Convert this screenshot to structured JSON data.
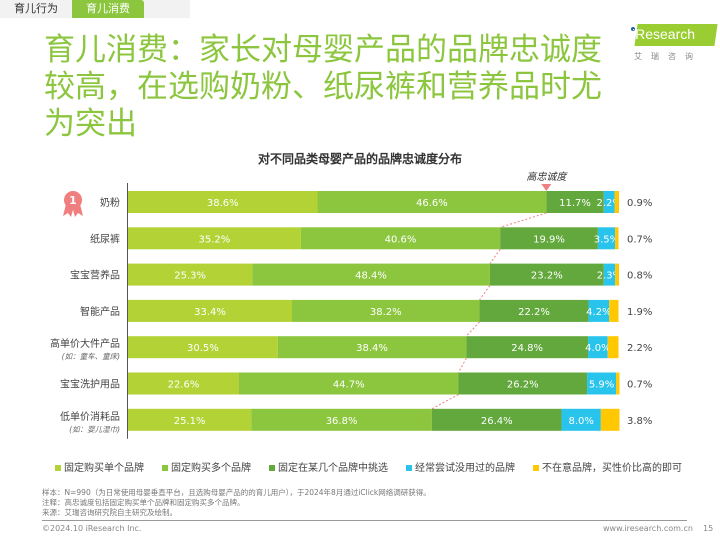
{
  "tabs": [
    {
      "label": "育儿行为",
      "active": false
    },
    {
      "label": "育儿消费",
      "active": true
    }
  ],
  "title": "育儿消费：家长对母婴产品的品牌忠诚度较高，在选购奶粉、纸尿裤和营养品时尤为突出",
  "logo": {
    "text": "iResearch",
    "cn": "艾瑞咨询"
  },
  "colors": {
    "accent": "#8cc63f",
    "segments": [
      "#b3d235",
      "#8cc63f",
      "#62a83c",
      "#29c4ec",
      "#ffc800"
    ],
    "marker": "#f08080"
  },
  "chart_data": {
    "type": "bar",
    "orientation": "horizontal",
    "stacked": true,
    "title": "对不同品类母婴产品的品牌忠诚度分布",
    "annotation": "高忠诚度",
    "rank_badge": {
      "category": "奶粉",
      "rank": "1"
    },
    "categories": [
      {
        "name": "奶粉",
        "note": ""
      },
      {
        "name": "纸尿裤",
        "note": ""
      },
      {
        "name": "宝宝营养品",
        "note": ""
      },
      {
        "name": "智能产品",
        "note": ""
      },
      {
        "name": "高单价大件产品",
        "note": "(如：童车、童床)"
      },
      {
        "name": "宝宝洗护用品",
        "note": ""
      },
      {
        "name": "低单价消耗品",
        "note": "(如：婴儿湿巾)"
      }
    ],
    "series": [
      {
        "name": "固定购买单个品牌",
        "values": [
          38.6,
          35.2,
          25.3,
          33.4,
          30.5,
          22.6,
          25.1
        ]
      },
      {
        "name": "固定购买多个品牌",
        "values": [
          46.6,
          40.6,
          48.4,
          38.2,
          38.4,
          44.7,
          36.8
        ]
      },
      {
        "name": "固定在某几个品牌中挑选",
        "values": [
          11.7,
          19.9,
          23.2,
          22.2,
          24.8,
          26.2,
          26.4
        ]
      },
      {
        "name": "经常尝试没用过的品牌",
        "values": [
          2.2,
          3.5,
          2.3,
          4.2,
          4.0,
          5.9,
          8.0
        ]
      },
      {
        "name": "不在意品牌，买性价比高的即可",
        "values": [
          0.9,
          0.7,
          0.8,
          1.9,
          2.2,
          0.7,
          3.8
        ]
      }
    ],
    "xlim": [
      0,
      100
    ],
    "legend": "bottom",
    "grid": false
  },
  "notes": [
    "样本：N=990（为日常使用母婴垂直平台，且选购母婴产品的的育儿用户），于2024年8月通过iClick网络调研获得。",
    "注释：高忠诚度包括固定购买单个品牌和固定购买多个品牌。",
    "来源：艾瑞咨询研究院自主研究及绘制。"
  ],
  "footer": {
    "copyright": "©2024.10 iResearch Inc.",
    "url": "www.iresearch.com.cn",
    "page": "15"
  }
}
